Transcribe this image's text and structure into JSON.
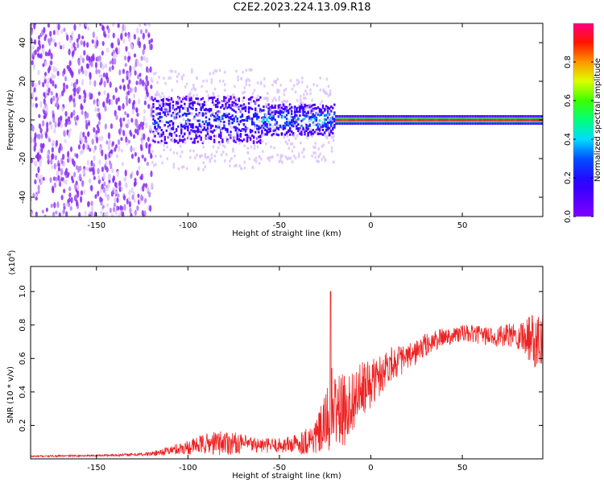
{
  "title": "C2E2.2023.224.13.09.R18",
  "colorbar": {
    "label": "Normalized spectral amplitude",
    "ticks": [
      "0.0",
      "0.2",
      "0.4",
      "0.6",
      "0.8"
    ],
    "tick_values": [
      0.0,
      0.2,
      0.4,
      0.6,
      0.8
    ],
    "range": [
      0,
      1
    ]
  },
  "chart_data": [
    {
      "type": "heatmap",
      "title": "",
      "xlabel": "Height of straight line (km)",
      "ylabel": "Frequency (Hz)",
      "xlim": [
        -186,
        94
      ],
      "ylim": [
        -50,
        50
      ],
      "x_ticks": [
        -150,
        -100,
        -50,
        0,
        50
      ],
      "y_ticks": [
        -40,
        -20,
        0,
        20,
        40
      ],
      "colorscale": [
        "#ffffff",
        "#e8d8ff",
        "#8000ff",
        "#0000ff",
        "#00ffff",
        "#00ff00",
        "#ffff00",
        "#ff8000",
        "#ff0000",
        "#ff0080"
      ],
      "segments": [
        {
          "x_range": [
            -186,
            -120
          ],
          "freq_spread_hz": 50,
          "amplitude": 0.15,
          "description_level": "scattered"
        },
        {
          "x_range": [
            -120,
            -60
          ],
          "freq_spread_hz": 12,
          "amplitude": 0.3
        },
        {
          "x_range": [
            -60,
            -20
          ],
          "freq_spread_hz": 8,
          "amplitude": 0.4
        },
        {
          "x_range": [
            -20,
            94
          ],
          "freq_spread_hz": 2,
          "amplitude": 0.95
        }
      ]
    },
    {
      "type": "line",
      "title": "",
      "xlabel": "Height of straight line (km)",
      "ylabel": "SNR (10 * v/v)",
      "y_multiplier_label": "(x10",
      "y_multiplier_exp": "4",
      "y_multiplier_close": ")",
      "xlim": [
        -186,
        94
      ],
      "ylim": [
        0,
        1.15
      ],
      "x_ticks": [
        -150,
        -100,
        -50,
        0,
        50
      ],
      "y_ticks": [
        0.2,
        0.4,
        0.6,
        0.8,
        1.0
      ],
      "series": [
        {
          "color": "#ee2222",
          "envelope": {
            "x": [
              -186,
              -150,
              -130,
              -120,
              -110,
              -100,
              -90,
              -80,
              -70,
              -60,
              -50,
              -40,
              -30,
              -25,
              -22,
              -20,
              -15,
              -10,
              -5,
              0,
              5,
              10,
              20,
              30,
              40,
              50,
              60,
              70,
              80,
              90,
              94
            ],
            "center": [
              0.015,
              0.02,
              0.025,
              0.03,
              0.05,
              0.07,
              0.09,
              0.1,
              0.09,
              0.08,
              0.08,
              0.09,
              0.13,
              0.2,
              0.3,
              0.3,
              0.28,
              0.35,
              0.4,
              0.45,
              0.5,
              0.57,
              0.6,
              0.68,
              0.73,
              0.75,
              0.74,
              0.73,
              0.74,
              0.72,
              0.75
            ],
            "spread": [
              0.006,
              0.006,
              0.01,
              0.015,
              0.03,
              0.05,
              0.07,
              0.09,
              0.06,
              0.05,
              0.05,
              0.07,
              0.12,
              0.2,
              0.3,
              0.25,
              0.25,
              0.2,
              0.2,
              0.16,
              0.14,
              0.12,
              0.09,
              0.08,
              0.06,
              0.06,
              0.06,
              0.07,
              0.09,
              0.2,
              0.2
            ]
          },
          "peak": {
            "x": -22,
            "y": 1.0
          }
        }
      ]
    }
  ]
}
